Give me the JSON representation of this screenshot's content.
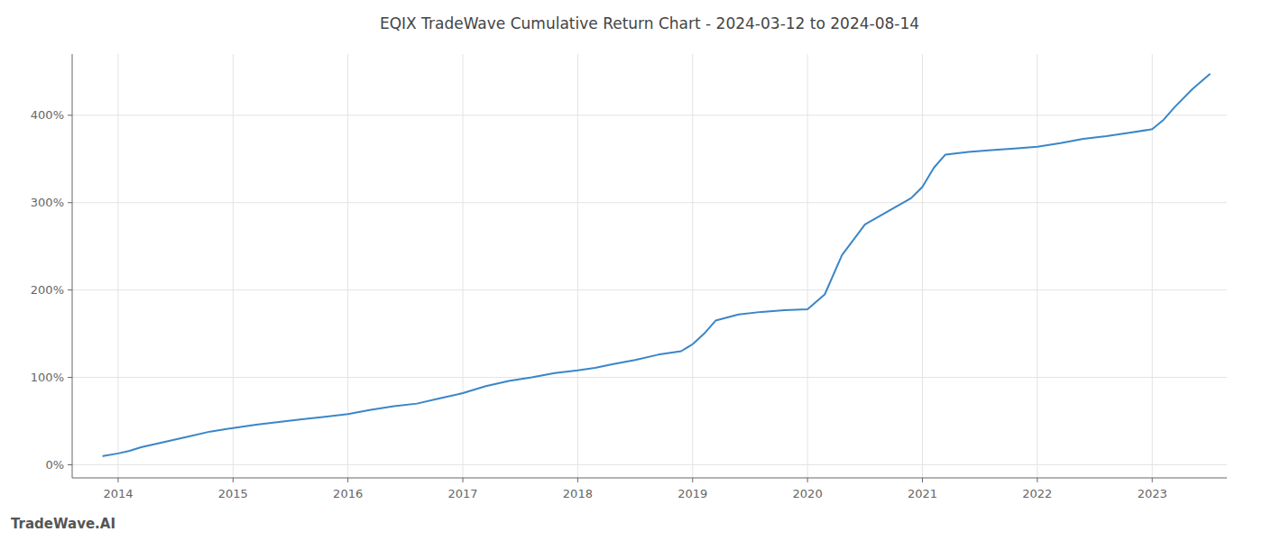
{
  "chart_data": {
    "type": "line",
    "title": "EQIX TradeWave Cumulative Return Chart - 2024-03-12 to 2024-08-14",
    "annotations": [
      "TradeWave.AI"
    ],
    "color": "#3a86c8",
    "grid": true,
    "xlim": [
      2013.6,
      2023.65
    ],
    "xticks": [
      2014,
      2015,
      2016,
      2017,
      2018,
      2019,
      2020,
      2021,
      2022,
      2023
    ],
    "ylim": [
      -15,
      470
    ],
    "yticks": [
      {
        "value": 0,
        "label": "0%"
      },
      {
        "value": 100,
        "label": "100%"
      },
      {
        "value": 200,
        "label": "200%"
      },
      {
        "value": 300,
        "label": "300%"
      },
      {
        "value": 400,
        "label": "400%"
      }
    ],
    "x": [
      2013.87,
      2014.0,
      2014.1,
      2014.2,
      2014.4,
      2014.6,
      2014.8,
      2015.0,
      2015.2,
      2015.4,
      2015.6,
      2015.8,
      2016.0,
      2016.2,
      2016.4,
      2016.6,
      2016.8,
      2017.0,
      2017.2,
      2017.4,
      2017.6,
      2017.8,
      2018.0,
      2018.15,
      2018.3,
      2018.5,
      2018.7,
      2018.9,
      2019.0,
      2019.1,
      2019.2,
      2019.4,
      2019.6,
      2019.8,
      2020.0,
      2020.15,
      2020.3,
      2020.5,
      2020.7,
      2020.9,
      2021.0,
      2021.1,
      2021.2,
      2021.4,
      2021.6,
      2021.8,
      2022.0,
      2022.2,
      2022.4,
      2022.6,
      2022.8,
      2023.0,
      2023.1,
      2023.2,
      2023.35,
      2023.5
    ],
    "values": [
      10,
      13,
      16,
      20,
      26,
      32,
      38,
      42,
      46,
      49,
      52,
      55,
      58,
      63,
      67,
      70,
      76,
      82,
      90,
      96,
      100,
      105,
      108,
      111,
      115,
      120,
      126,
      130,
      138,
      150,
      165,
      172,
      175,
      177,
      178,
      195,
      240,
      275,
      290,
      305,
      318,
      340,
      355,
      358,
      360,
      362,
      364,
      368,
      373,
      376,
      380,
      384,
      395,
      410,
      430,
      447
    ]
  }
}
